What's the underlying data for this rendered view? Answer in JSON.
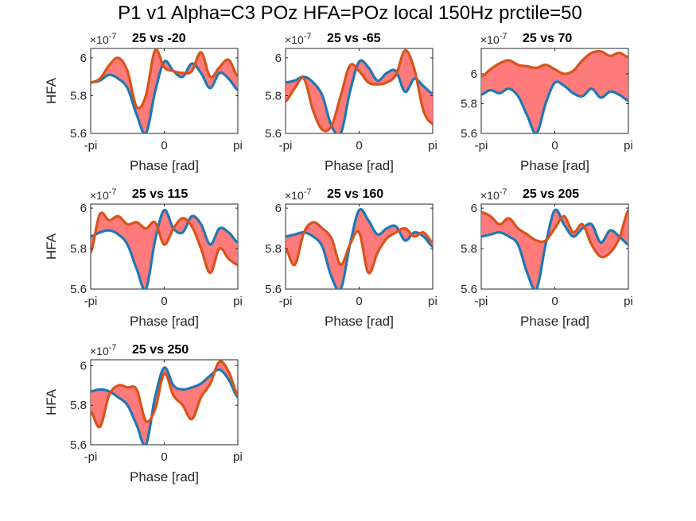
{
  "figure": {
    "title": "P1 v1 Alpha=C3 POz HFA=POz local 150Hz prctile=50",
    "exponent_base": "×10",
    "exponent_power": "-7"
  },
  "colors": {
    "series_a": "#1f77b4",
    "series_b": "#d95319",
    "fill": "#ff6b6b"
  },
  "chart_data": [
    {
      "type": "line",
      "title": "25 vs -20",
      "xlabel": "Phase [rad]",
      "ylabel": "HFA",
      "xticks": [
        "-pi",
        "0",
        "pi"
      ],
      "yticks": [
        "5.6",
        "5.8",
        "6"
      ],
      "ytick_values": [
        5.6,
        5.8,
        6.0
      ],
      "xlim": [
        -3.1416,
        3.1416
      ],
      "ylim": [
        5.6,
        6.05
      ],
      "significance_fill": true,
      "x": [
        -3.1416,
        -2.7489,
        -2.3562,
        -1.9635,
        -1.5708,
        -1.1781,
        -0.7854,
        -0.3927,
        0.0,
        0.3927,
        0.7854,
        1.1781,
        1.5708,
        1.9635,
        2.3562,
        2.7489,
        3.1416
      ],
      "series": [
        {
          "values": [
            5.87,
            5.88,
            5.91,
            5.89,
            5.84,
            5.7,
            5.6,
            5.82,
            5.98,
            5.93,
            5.9,
            5.97,
            5.92,
            5.84,
            5.92,
            5.89,
            5.83
          ]
        },
        {
          "values": [
            5.87,
            5.89,
            5.96,
            6.0,
            5.93,
            5.74,
            5.8,
            6.04,
            5.95,
            5.93,
            5.92,
            5.93,
            6.03,
            5.9,
            5.95,
            5.99,
            5.9
          ]
        }
      ]
    },
    {
      "type": "line",
      "title": "25 vs -65",
      "xlabel": "Phase [rad]",
      "ylabel": "",
      "xticks": [
        "-pi",
        "0",
        "pi"
      ],
      "yticks": [
        "5.6",
        "5.8",
        "6"
      ],
      "ytick_values": [
        5.6,
        5.8,
        6.0
      ],
      "xlim": [
        -3.1416,
        3.1416
      ],
      "ylim": [
        5.6,
        6.05
      ],
      "significance_fill": true,
      "x": [
        -3.1416,
        -2.7489,
        -2.3562,
        -1.9635,
        -1.5708,
        -1.1781,
        -0.7854,
        -0.3927,
        0.0,
        0.3927,
        0.7854,
        1.1781,
        1.5708,
        1.9635,
        2.3562,
        2.7489,
        3.1416
      ],
      "series": [
        {
          "values": [
            5.87,
            5.88,
            5.9,
            5.87,
            5.8,
            5.64,
            5.6,
            5.82,
            5.98,
            5.95,
            5.88,
            5.92,
            5.93,
            5.82,
            5.89,
            5.85,
            5.81
          ]
        },
        {
          "values": [
            5.77,
            5.84,
            5.89,
            5.72,
            5.62,
            5.64,
            5.8,
            5.96,
            5.93,
            5.87,
            5.86,
            5.87,
            5.91,
            6.04,
            5.94,
            5.72,
            5.65
          ]
        }
      ]
    },
    {
      "type": "line",
      "title": "25 vs 70",
      "xlabel": "Phase [rad]",
      "ylabel": "",
      "xticks": [
        "-pi",
        "0",
        "pi"
      ],
      "yticks": [
        "5.6",
        "5.8",
        "6"
      ],
      "ytick_values": [
        5.6,
        5.8,
        6.0
      ],
      "xlim": [
        -3.1416,
        3.1416
      ],
      "ylim": [
        5.6,
        6.17
      ],
      "significance_fill": true,
      "x": [
        -3.1416,
        -2.7489,
        -2.3562,
        -1.9635,
        -1.5708,
        -1.1781,
        -0.7854,
        -0.3927,
        0.0,
        0.3927,
        0.7854,
        1.1781,
        1.5708,
        1.9635,
        2.3562,
        2.7489,
        3.1416
      ],
      "series": [
        {
          "values": [
            5.86,
            5.89,
            5.87,
            5.9,
            5.85,
            5.72,
            5.6,
            5.8,
            5.94,
            5.92,
            5.87,
            5.85,
            5.9,
            5.84,
            5.88,
            5.86,
            5.82
          ]
        },
        {
          "values": [
            5.98,
            6.03,
            6.07,
            6.09,
            6.06,
            6.05,
            6.04,
            6.06,
            6.03,
            6.0,
            6.02,
            6.09,
            6.14,
            6.15,
            6.12,
            6.14,
            6.11
          ]
        }
      ]
    },
    {
      "type": "line",
      "title": "25 vs 115",
      "xlabel": "Phase [rad]",
      "ylabel": "HFA",
      "xticks": [
        "-pi",
        "0",
        "pi"
      ],
      "yticks": [
        "5.6",
        "5.8",
        "6"
      ],
      "ytick_values": [
        5.6,
        5.8,
        6.0
      ],
      "xlim": [
        -3.1416,
        3.1416
      ],
      "ylim": [
        5.6,
        6.02
      ],
      "significance_fill": true,
      "x": [
        -3.1416,
        -2.7489,
        -2.3562,
        -1.9635,
        -1.5708,
        -1.1781,
        -0.7854,
        -0.3927,
        0.0,
        0.3927,
        0.7854,
        1.1781,
        1.5708,
        1.9635,
        2.3562,
        2.7489,
        3.1416
      ],
      "series": [
        {
          "values": [
            5.86,
            5.88,
            5.89,
            5.87,
            5.82,
            5.7,
            5.6,
            5.84,
            5.99,
            5.9,
            5.88,
            5.96,
            5.92,
            5.82,
            5.9,
            5.88,
            5.83
          ]
        },
        {
          "values": [
            5.78,
            5.97,
            5.94,
            5.96,
            5.92,
            5.93,
            5.9,
            5.93,
            5.82,
            5.9,
            5.95,
            5.91,
            5.8,
            5.68,
            5.8,
            5.75,
            5.72
          ]
        }
      ]
    },
    {
      "type": "line",
      "title": "25 vs 160",
      "xlabel": "Phase [rad]",
      "ylabel": "",
      "xticks": [
        "-pi",
        "0",
        "pi"
      ],
      "yticks": [
        "5.6",
        "5.8",
        "6"
      ],
      "ytick_values": [
        5.6,
        5.8,
        6.0
      ],
      "xlim": [
        -3.1416,
        3.1416
      ],
      "ylim": [
        5.6,
        6.02
      ],
      "significance_fill": true,
      "x": [
        -3.1416,
        -2.7489,
        -2.3562,
        -1.9635,
        -1.5708,
        -1.1781,
        -0.7854,
        -0.3927,
        0.0,
        0.3927,
        0.7854,
        1.1781,
        1.5708,
        1.9635,
        2.3562,
        2.7489,
        3.1416
      ],
      "series": [
        {
          "values": [
            5.86,
            5.87,
            5.88,
            5.86,
            5.81,
            5.66,
            5.6,
            5.82,
            5.99,
            5.94,
            5.87,
            5.9,
            5.91,
            5.84,
            5.88,
            5.86,
            5.81
          ]
        },
        {
          "values": [
            5.8,
            5.72,
            5.88,
            5.93,
            5.9,
            5.85,
            5.72,
            5.82,
            5.88,
            5.68,
            5.78,
            5.85,
            5.88,
            5.9,
            5.86,
            5.88,
            5.83
          ]
        }
      ]
    },
    {
      "type": "line",
      "title": "25 vs 205",
      "xlabel": "Phase [rad]",
      "ylabel": "",
      "xticks": [
        "-pi",
        "0",
        "pi"
      ],
      "yticks": [
        "5.6",
        "5.8",
        "6"
      ],
      "ytick_values": [
        5.6,
        5.8,
        6.0
      ],
      "xlim": [
        -3.1416,
        3.1416
      ],
      "ylim": [
        5.6,
        6.02
      ],
      "significance_fill": true,
      "x": [
        -3.1416,
        -2.7489,
        -2.3562,
        -1.9635,
        -1.5708,
        -1.1781,
        -0.7854,
        -0.3927,
        0.0,
        0.3927,
        0.7854,
        1.1781,
        1.5708,
        1.9635,
        2.3562,
        2.7489,
        3.1416
      ],
      "series": [
        {
          "values": [
            5.86,
            5.87,
            5.88,
            5.86,
            5.82,
            5.68,
            5.6,
            5.82,
            5.99,
            5.92,
            5.86,
            5.9,
            5.92,
            5.83,
            5.89,
            5.86,
            5.82
          ]
        },
        {
          "values": [
            5.98,
            5.96,
            5.92,
            5.95,
            5.9,
            5.87,
            5.84,
            5.84,
            5.9,
            5.96,
            5.88,
            5.92,
            5.82,
            5.76,
            5.78,
            5.85,
            5.99
          ]
        }
      ]
    },
    {
      "type": "line",
      "title": "25 vs 250",
      "xlabel": "Phase [rad]",
      "ylabel": "HFA",
      "xticks": [
        "-pi",
        "0",
        "pi"
      ],
      "yticks": [
        "5.6",
        "5.8",
        "6"
      ],
      "ytick_values": [
        5.6,
        5.8,
        6.0
      ],
      "xlim": [
        -3.1416,
        3.1416
      ],
      "ylim": [
        5.6,
        6.03
      ],
      "significance_fill": true,
      "x": [
        -3.1416,
        -2.7489,
        -2.3562,
        -1.9635,
        -1.5708,
        -1.1781,
        -0.7854,
        -0.3927,
        0.0,
        0.3927,
        0.7854,
        1.1781,
        1.5708,
        1.9635,
        2.3562,
        2.7489,
        3.1416
      ],
      "series": [
        {
          "values": [
            5.87,
            5.88,
            5.87,
            5.84,
            5.8,
            5.7,
            5.6,
            5.84,
            5.99,
            5.9,
            5.88,
            5.89,
            5.91,
            5.95,
            5.98,
            5.93,
            5.84
          ]
        },
        {
          "values": [
            5.77,
            5.69,
            5.85,
            5.9,
            5.89,
            5.88,
            5.72,
            5.78,
            5.96,
            5.85,
            5.8,
            5.73,
            5.84,
            5.91,
            6.02,
            5.97,
            5.85
          ]
        }
      ]
    }
  ]
}
